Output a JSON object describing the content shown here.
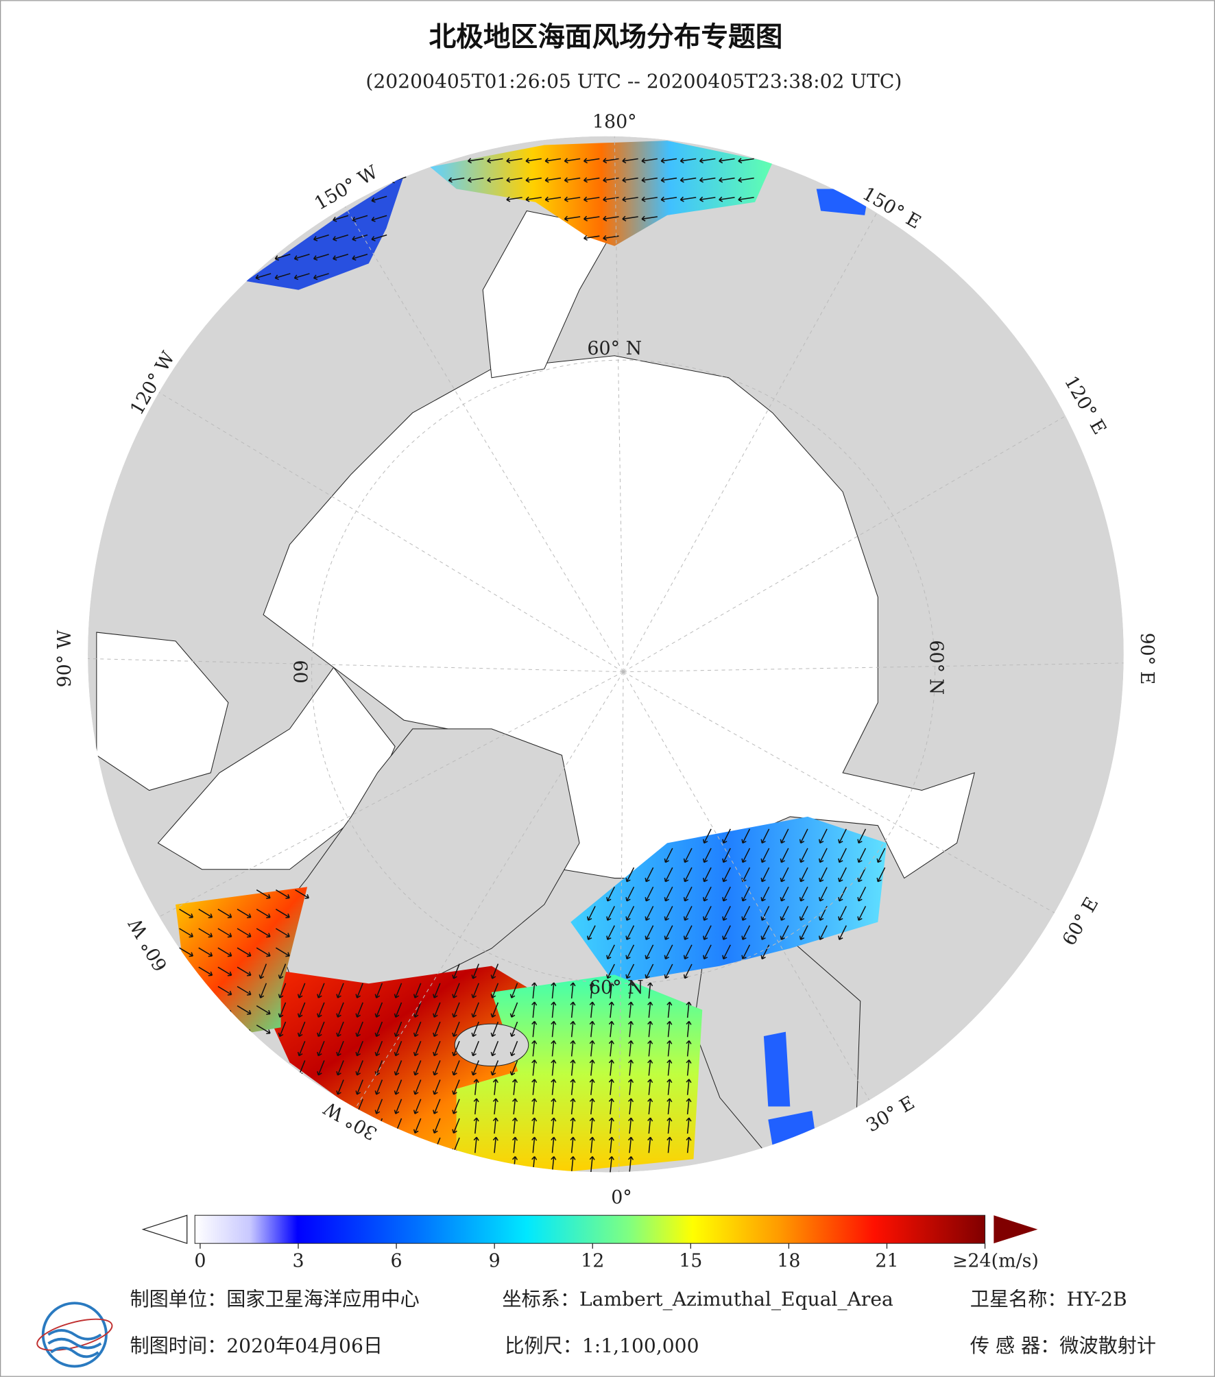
{
  "header": {
    "title": "北极地区海面风场分布专题图",
    "subtitle": "(20200405T01:26:05 UTC -- 20200405T23:38:02 UTC)"
  },
  "map": {
    "labels": [
      "180°",
      "150° E",
      "120° E",
      "90° E",
      "60° E",
      "30° E",
      "0°",
      "30° W",
      "60° W",
      "90° W",
      "120° W",
      "150° W",
      "60° N",
      "60° N",
      "60° N",
      "60"
    ]
  },
  "colorbar": {
    "range": [
      0,
      24
    ],
    "ticks": [
      0,
      3,
      6,
      9,
      12,
      15,
      18,
      21,
      {
        "value": 24,
        "label": "≥24(m/s)"
      }
    ]
  },
  "footer": {
    "unit": "制图单位：国家卫星海洋应用中心",
    "crs": "坐标系：Lambert_Azimuthal_Equal_Area",
    "satellite": "卫星名称：HY-2B",
    "date": "制图时间：2020年04月06日",
    "scale": "比例尺：1:1,100,000",
    "sensor": "传 感 器：微波散射计"
  }
}
